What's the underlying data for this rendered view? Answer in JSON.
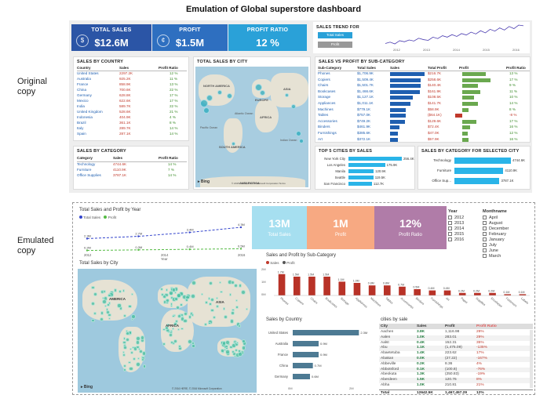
{
  "page": {
    "title": "Emulation of Global superstore dashboard",
    "original_label": "Original\ncopy",
    "emulated_label": "Emulated\ncopy"
  },
  "original": {
    "kpis": [
      {
        "label": "TOTAL SALES",
        "value": "$12.6M",
        "color": "#2b55a6",
        "icon": "dollar-icon"
      },
      {
        "label": "PROFIT",
        "value": "$1.5M",
        "color": "#2e6fc0",
        "icon": "coin-icon"
      },
      {
        "label": "PROFIT RATIO",
        "value": "12 %",
        "color": "#2aa1d8",
        "icon": "percent-icon"
      }
    ],
    "sales_trend": {
      "title": "SALES TREND FOR",
      "buttons": [
        "Total Sales",
        "Profit"
      ],
      "years": [
        "2012",
        "2013",
        "2014",
        "2015",
        "2016"
      ],
      "values": [
        20,
        24,
        19,
        28,
        25,
        30,
        27,
        35,
        31,
        29,
        38,
        34,
        42,
        38,
        45,
        40,
        48,
        44,
        52,
        47,
        56,
        50,
        60,
        55,
        64,
        58,
        68,
        62,
        72,
        70
      ]
    },
    "sales_by_country": {
      "title": "SALES BY COUNTRY",
      "headers": [
        "Country",
        "Sales",
        "Profit Ratio"
      ],
      "rows": [
        [
          "United States",
          "2297.2K",
          "12 %"
        ],
        [
          "Australia",
          "925.2K",
          "11 %"
        ],
        [
          "France",
          "858.9K",
          "13 %"
        ],
        [
          "China",
          "700.6K",
          "22 %"
        ],
        [
          "Germany",
          "628.8K",
          "17 %"
        ],
        [
          "Mexico",
          "622.6K",
          "17 %"
        ],
        [
          "India",
          "589.7K",
          "22 %"
        ],
        [
          "United Kingdom",
          "528.6K",
          "21 %"
        ],
        [
          "Indonesia",
          "404.9K",
          "4 %"
        ],
        [
          "Brazil",
          "361.1K",
          "8 %"
        ],
        [
          "Italy",
          "289.7K",
          "14 %"
        ],
        [
          "Spain",
          "287.1K",
          "14 %"
        ]
      ]
    },
    "sales_by_category": {
      "title": "SALES BY CATEGORY",
      "headers": [
        "Category",
        "Sales",
        "Profit Ratio"
      ],
      "rows": [
        [
          "Technology",
          "4744.6K",
          "14 %"
        ],
        [
          "Furniture",
          "4110.9K",
          "7 %"
        ],
        [
          "Office Supplies",
          "3787.1K",
          "14 %"
        ]
      ]
    },
    "sales_by_city": {
      "title": "TOTAL SALES BY CITY",
      "labels": [
        "NORTH AMERICA",
        "EUROPE",
        "ASIA",
        "AFRICA",
        "SOUTH AMERICA",
        "ANTARCTICA",
        "Atlantic Ocean",
        "Pacific Ocean",
        "Indian Ocean"
      ],
      "bing": "Bing",
      "copyright": "© 2015 HERE, © 2015 Microsoft Corporation  Terms"
    },
    "sales_vs_profit": {
      "title": "SALES VS PROFIT BY SUB-CATEGORY",
      "headers": [
        "Sub-Category",
        "Total Sales",
        "Sales",
        "Total Profit",
        "Profit",
        "Profit Ratio"
      ],
      "rows": [
        [
          "Phones",
          "$1,706.9K",
          1706.9,
          "$216.7K",
          216.7,
          "13 %"
        ],
        [
          "Copiers",
          "$1,509.4K",
          1509.4,
          "$258.6K",
          258.6,
          "17 %"
        ],
        [
          "Chairs",
          "$1,501.7K",
          1501.7,
          "$140.4K",
          140.4,
          "9 %"
        ],
        [
          "Bookcases",
          "$1,466.6K",
          1466.6,
          "$161.9K",
          161.9,
          "11 %"
        ],
        [
          "Storage",
          "$1,127.1K",
          1127.1,
          "$108.5K",
          108.5,
          "10 %"
        ],
        [
          "Appliances",
          "$1,011.1K",
          1011.1,
          "$141.7K",
          141.7,
          "14 %"
        ],
        [
          "Machines",
          "$779.1K",
          779.1,
          "$58.9K",
          58.9,
          "8 %"
        ],
        [
          "Tables",
          "$757.0K",
          757.0,
          "($64.1K)",
          -64.1,
          "-8 %"
        ],
        [
          "Accessories",
          "$749.2K",
          749.2,
          "$129.6K",
          129.6,
          "17 %"
        ],
        [
          "Binders",
          "$461.9K",
          461.9,
          "$72.4K",
          72.4,
          "16 %"
        ],
        [
          "Furnishings",
          "$385.6K",
          385.6,
          "$47.0K",
          47.0,
          "12 %"
        ],
        [
          "Art",
          "$372.1K",
          372.1,
          "$57.9K",
          57.9,
          "16 %"
        ]
      ]
    },
    "top5_cities": {
      "title": "TOP 5 CITIES BY SALES",
      "rows": [
        {
          "city": "New York City",
          "value": 256.4,
          "label": "256.4K"
        },
        {
          "city": "Los Angeles",
          "value": 175.9,
          "label": "175.9K"
        },
        {
          "city": "Manila",
          "value": 120.9,
          "label": "120.9K"
        },
        {
          "city": "Seattle",
          "value": 119.5,
          "label": "119.5K"
        },
        {
          "city": "San Francisco",
          "value": 112.7,
          "label": "112.7K"
        }
      ]
    },
    "category_selected_city": {
      "title": "SALES BY CATEGORY FOR SELECTED CITY",
      "rows": [
        {
          "cat": "Technology",
          "value": 4744.6,
          "label": "4744.6K"
        },
        {
          "cat": "Furniture",
          "value": 4110.9,
          "label": "4110.9K"
        },
        {
          "cat": "Office Sup...",
          "value": 3787.1,
          "label": "3787.1K"
        }
      ]
    }
  },
  "emulated": {
    "year_chart": {
      "title": "Total Sales and Profit by Year",
      "legend": [
        "Total Sales",
        "Profit"
      ],
      "x": [
        "2012",
        "2014",
        "2016"
      ],
      "axis_label": "Year",
      "sales_labels": [
        "2.3M",
        "2.7M",
        "3.4M",
        "4.3M"
      ],
      "profit_labels": [
        "0.2M",
        "0.3M",
        "0.4M",
        "0.5M"
      ],
      "sales": [
        2.3,
        2.7,
        3.4,
        4.3
      ],
      "profit": [
        0.2,
        0.3,
        0.4,
        0.5
      ]
    },
    "kpis": [
      {
        "value": "13M",
        "label": "Total Sales",
        "color": "#a6dff0"
      },
      {
        "value": "1M",
        "label": "Profit",
        "color": "#f7a982"
      },
      {
        "value": "12%",
        "label": "Profit Ratio",
        "color": "#b07ca8"
      }
    ],
    "year_filter": {
      "title": "Year",
      "items": [
        "2012",
        "2013",
        "2014",
        "2015",
        "2016"
      ]
    },
    "month_filter": {
      "title": "Monthname",
      "items": [
        "April",
        "August",
        "December",
        "February",
        "January",
        "July",
        "June",
        "March"
      ]
    },
    "city_map": {
      "title": "Total Sales by City",
      "labels": [
        "AMERICA",
        "AFRICA",
        "ASIA"
      ],
      "bing": "Bing",
      "copyright": "© 2016 HERE, © 2016 Microsoft Corporation"
    },
    "subcat_chart": {
      "title": "Sales and Profit by Sub-Category",
      "legend": [
        "Sales",
        "Profit"
      ],
      "categories": [
        "Phones",
        "Copiers",
        "Chairs",
        "Bookcases",
        "Storage",
        "Appliances",
        "Machines",
        "Tables",
        "Accessories",
        "Binders",
        "Furnishings",
        "Art",
        "Paper",
        "Supplies",
        "Envelopes",
        "Fasteners",
        "Labels"
      ],
      "sales": [
        1.7,
        1.5,
        1.5,
        1.5,
        1.1,
        1.0,
        0.8,
        0.8,
        0.7,
        0.5,
        0.4,
        0.4,
        0.2,
        0.2,
        0.2,
        0.1,
        0.1
      ],
      "labels": [
        "1.7M",
        "1.5M",
        "1.5M",
        "1.5M",
        "1.1M",
        "1.0M",
        "0.8M",
        "0.8M",
        "0.7M",
        "0.5M",
        "0.4M",
        "0.4M",
        "0.2M",
        "0.2M",
        "0.2M",
        "0.1M",
        "0.1M"
      ],
      "yticks": [
        "2M",
        "1M",
        "0M"
      ]
    },
    "country_chart": {
      "title": "Sales by Country",
      "rows": [
        {
          "country": "United States",
          "value": 2.3,
          "label": "2.3M"
        },
        {
          "country": "Australia",
          "value": 0.9,
          "label": "0.9M"
        },
        {
          "country": "France",
          "value": 0.9,
          "label": "0.9M"
        },
        {
          "country": "China",
          "value": 0.7,
          "label": "0.7M"
        },
        {
          "country": "Germany",
          "value": 0.6,
          "label": "0.6M"
        }
      ],
      "xticks": [
        "0M",
        "2M"
      ]
    },
    "cities_table": {
      "title": "cities by sale",
      "headers": [
        "City",
        "Sales",
        "Profit",
        "Profit Ratio"
      ],
      "rows": [
        [
          "Aachen",
          "3.8K",
          "1,116.98",
          "29%"
        ],
        [
          "Aalen",
          "1.0K",
          "283.01",
          "29%"
        ],
        [
          "Aalst",
          "0.4K",
          "152.31",
          "35%"
        ],
        [
          "Abu",
          "1.1K",
          "(1,475.09)",
          "-135%"
        ],
        [
          "Abaetetuba",
          "1.4K",
          "223.62",
          "17%"
        ],
        [
          "Abakan",
          "0.0K",
          "(27.22)",
          "-167%"
        ],
        [
          "Abbeville",
          "0.2K",
          "8.36",
          "4%"
        ],
        [
          "Abbotsford",
          "0.1K",
          "(100.8)",
          "-76%"
        ],
        [
          "Abeokuta",
          "1.3K",
          "(250.83)",
          "-19%"
        ],
        [
          "Aberdeen",
          "1.5K",
          "120.76",
          "8%"
        ],
        [
          "Abha",
          "1.0K",
          "210.81",
          "21%"
        ]
      ],
      "total": [
        "Total",
        "12642.5K",
        "1,467,457.29",
        "12%"
      ]
    }
  }
}
